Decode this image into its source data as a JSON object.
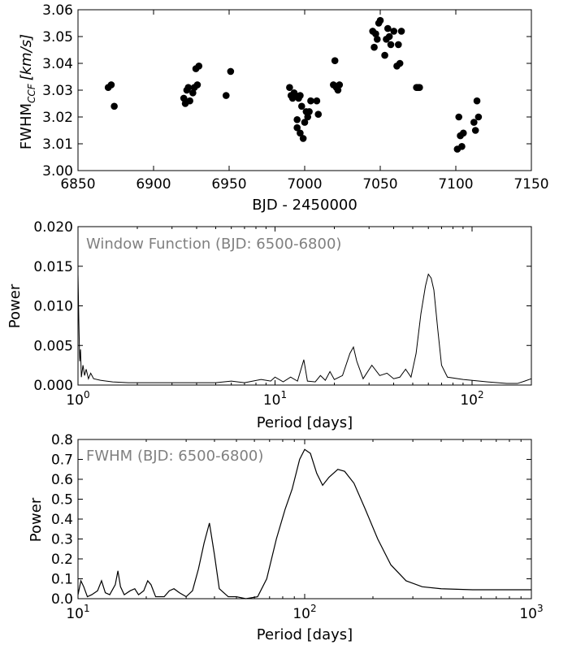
{
  "chart_data": [
    {
      "type": "scatter",
      "xlabel": "BJD - 2450000",
      "ylabel_main": "FWHM",
      "ylabel_sub": "CCF",
      "ylabel_unit": "[km/s]",
      "xlim": [
        6850,
        7150
      ],
      "ylim": [
        3.0,
        3.06
      ],
      "x_ticks": [
        "6850",
        "6900",
        "6950",
        "7000",
        "7050",
        "7100",
        "7150"
      ],
      "y_ticks": [
        "3.00",
        "3.01",
        "3.02",
        "3.03",
        "3.04",
        "3.05",
        "3.06"
      ],
      "grid": false,
      "marker_color": "#000000",
      "points": [
        [
          6870,
          3.031
        ],
        [
          6872,
          3.032
        ],
        [
          6874,
          3.024
        ],
        [
          6920,
          3.027
        ],
        [
          6921,
          3.025
        ],
        [
          6922,
          3.03
        ],
        [
          6923,
          3.031
        ],
        [
          6924,
          3.026
        ],
        [
          6926,
          3.029
        ],
        [
          6927,
          3.031
        ],
        [
          6928,
          3.038
        ],
        [
          6929,
          3.032
        ],
        [
          6930,
          3.039
        ],
        [
          6948,
          3.028
        ],
        [
          6951,
          3.037
        ],
        [
          6990,
          3.031
        ],
        [
          6991,
          3.028
        ],
        [
          6992,
          3.027
        ],
        [
          6993,
          3.029
        ],
        [
          6994,
          3.028
        ],
        [
          6995,
          3.019
        ],
        [
          6995,
          3.016
        ],
        [
          6996,
          3.027
        ],
        [
          6997,
          3.014
        ],
        [
          6997,
          3.028
        ],
        [
          6998,
          3.024
        ],
        [
          6999,
          3.012
        ],
        [
          7000,
          3.018
        ],
        [
          7001,
          3.022
        ],
        [
          7002,
          3.02
        ],
        [
          7003,
          3.022
        ],
        [
          7004,
          3.026
        ],
        [
          7008,
          3.026
        ],
        [
          7009,
          3.021
        ],
        [
          7019,
          3.032
        ],
        [
          7020,
          3.041
        ],
        [
          7021,
          3.031
        ],
        [
          7022,
          3.03
        ],
        [
          7023,
          3.032
        ],
        [
          7045,
          3.052
        ],
        [
          7046,
          3.046
        ],
        [
          7047,
          3.051
        ],
        [
          7048,
          3.049
        ],
        [
          7049,
          3.055
        ],
        [
          7050,
          3.056
        ],
        [
          7053,
          3.043
        ],
        [
          7054,
          3.049
        ],
        [
          7055,
          3.053
        ],
        [
          7056,
          3.05
        ],
        [
          7057,
          3.047
        ],
        [
          7059,
          3.052
        ],
        [
          7061,
          3.039
        ],
        [
          7062,
          3.047
        ],
        [
          7063,
          3.04
        ],
        [
          7064,
          3.052
        ],
        [
          7074,
          3.031
        ],
        [
          7075,
          3.031
        ],
        [
          7076,
          3.031
        ],
        [
          7101,
          3.008
        ],
        [
          7102,
          3.02
        ],
        [
          7103,
          3.013
        ],
        [
          7104,
          3.009
        ],
        [
          7105,
          3.014
        ],
        [
          7112,
          3.018
        ],
        [
          7113,
          3.015
        ],
        [
          7114,
          3.026
        ],
        [
          7115,
          3.02
        ]
      ]
    },
    {
      "type": "line",
      "annotation": "Window Function (BJD: 6500-6800)",
      "xlabel": "Period [days]",
      "ylabel": "Power",
      "xscale": "log",
      "xlim": [
        1,
        200
      ],
      "ylim": [
        0,
        0.02
      ],
      "y_ticks": [
        "0.000",
        "0.005",
        "0.010",
        "0.015",
        "0.020"
      ],
      "x_tick_labels": [
        "10",
        "10",
        "10"
      ],
      "x_tick_exponents": [
        "0",
        "1",
        "2"
      ],
      "line_color": "#000000",
      "series": [
        {
          "values": [
            [
              1.0,
              0.014
            ],
            [
              1.01,
              0.008
            ],
            [
              1.02,
              0.003
            ],
            [
              1.03,
              0.0045
            ],
            [
              1.04,
              0.001
            ],
            [
              1.06,
              0.0025
            ],
            [
              1.08,
              0.0012
            ],
            [
              1.1,
              0.002
            ],
            [
              1.13,
              0.0008
            ],
            [
              1.16,
              0.0015
            ],
            [
              1.2,
              0.0008
            ],
            [
              1.3,
              0.0006
            ],
            [
              1.5,
              0.0004
            ],
            [
              1.8,
              0.0003
            ],
            [
              2.5,
              0.0003
            ],
            [
              3.5,
              0.0003
            ],
            [
              5,
              0.0003
            ],
            [
              6,
              0.0005
            ],
            [
              7,
              0.0003
            ],
            [
              8.5,
              0.0007
            ],
            [
              9.5,
              0.0005
            ],
            [
              10.0,
              0.001
            ],
            [
              11.0,
              0.0004
            ],
            [
              12.0,
              0.001
            ],
            [
              13.0,
              0.0005
            ],
            [
              14.0,
              0.0032
            ],
            [
              14.6,
              0.0005
            ],
            [
              16.0,
              0.0004
            ],
            [
              17.0,
              0.0012
            ],
            [
              18.0,
              0.0006
            ],
            [
              19.0,
              0.0017
            ],
            [
              20.0,
              0.0007
            ],
            [
              22.0,
              0.0012
            ],
            [
              24.0,
              0.004
            ],
            [
              25.0,
              0.0048
            ],
            [
              26.0,
              0.003
            ],
            [
              28.0,
              0.0008
            ],
            [
              31.0,
              0.0025
            ],
            [
              34.0,
              0.0012
            ],
            [
              37.0,
              0.0015
            ],
            [
              40.0,
              0.0008
            ],
            [
              43.0,
              0.001
            ],
            [
              46.0,
              0.002
            ],
            [
              49.0,
              0.001
            ],
            [
              52.0,
              0.004
            ],
            [
              55.0,
              0.009
            ],
            [
              58.0,
              0.0125
            ],
            [
              60.0,
              0.014
            ],
            [
              62.0,
              0.0135
            ],
            [
              64.0,
              0.012
            ],
            [
              67.0,
              0.007
            ],
            [
              70.0,
              0.0025
            ],
            [
              75.0,
              0.001
            ],
            [
              90.0,
              0.0007
            ],
            [
              120.0,
              0.0004
            ],
            [
              150.0,
              0.0002
            ],
            [
              170.0,
              0.0002
            ],
            [
              185.0,
              0.0005
            ],
            [
              200.0,
              0.0008
            ]
          ]
        }
      ]
    },
    {
      "type": "line",
      "annotation": "FWHM (BJD: 6500-6800)",
      "xlabel": "Period [days]",
      "ylabel": "Power",
      "xscale": "log",
      "xlim": [
        10,
        1000
      ],
      "ylim": [
        0,
        0.8
      ],
      "y_ticks": [
        "0.0",
        "0.1",
        "0.2",
        "0.3",
        "0.4",
        "0.5",
        "0.6",
        "0.7",
        "0.8"
      ],
      "x_tick_labels": [
        "10",
        "10",
        "10"
      ],
      "x_tick_exponents": [
        "1",
        "2",
        "3"
      ],
      "line_color": "#000000",
      "series": [
        {
          "values": [
            [
              10.0,
              0.02
            ],
            [
              10.3,
              0.09
            ],
            [
              10.6,
              0.06
            ],
            [
              11.0,
              0.01
            ],
            [
              11.5,
              0.02
            ],
            [
              12.2,
              0.04
            ],
            [
              12.7,
              0.09
            ],
            [
              13.2,
              0.03
            ],
            [
              13.8,
              0.02
            ],
            [
              14.6,
              0.07
            ],
            [
              15.0,
              0.14
            ],
            [
              15.4,
              0.06
            ],
            [
              16.0,
              0.02
            ],
            [
              17.0,
              0.04
            ],
            [
              17.8,
              0.05
            ],
            [
              18.5,
              0.02
            ],
            [
              19.5,
              0.04
            ],
            [
              20.3,
              0.09
            ],
            [
              21.0,
              0.07
            ],
            [
              22.0,
              0.01
            ],
            [
              24.0,
              0.01
            ],
            [
              25.3,
              0.04
            ],
            [
              26.5,
              0.05
            ],
            [
              28.0,
              0.03
            ],
            [
              30.0,
              0.01
            ],
            [
              32.0,
              0.04
            ],
            [
              34.0,
              0.15
            ],
            [
              36.0,
              0.28
            ],
            [
              38.0,
              0.38
            ],
            [
              40.0,
              0.22
            ],
            [
              42.0,
              0.05
            ],
            [
              46.0,
              0.01
            ],
            [
              50.0,
              0.01
            ],
            [
              55.0,
              0.0
            ],
            [
              62.0,
              0.01
            ],
            [
              68.0,
              0.1
            ],
            [
              75.0,
              0.3
            ],
            [
              82.0,
              0.45
            ],
            [
              88.0,
              0.55
            ],
            [
              95.0,
              0.7
            ],
            [
              100.0,
              0.75
            ],
            [
              106.0,
              0.73
            ],
            [
              113.0,
              0.63
            ],
            [
              120.0,
              0.57
            ],
            [
              128.0,
              0.61
            ],
            [
              140.0,
              0.65
            ],
            [
              150.0,
              0.64
            ],
            [
              165.0,
              0.58
            ],
            [
              185.0,
              0.45
            ],
            [
              210.0,
              0.3
            ],
            [
              240.0,
              0.17
            ],
            [
              280.0,
              0.09
            ],
            [
              330.0,
              0.06
            ],
            [
              400.0,
              0.05
            ],
            [
              550.0,
              0.045
            ],
            [
              750.0,
              0.045
            ],
            [
              1000.0,
              0.045
            ]
          ]
        }
      ]
    }
  ]
}
